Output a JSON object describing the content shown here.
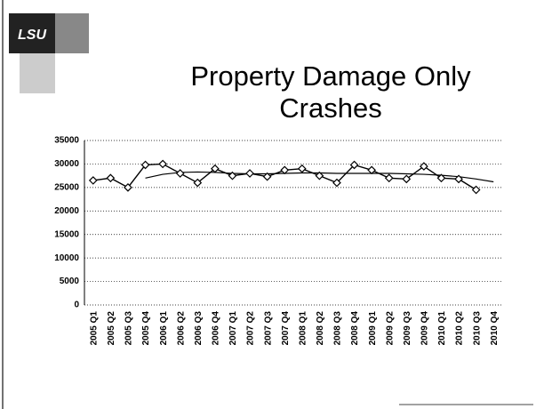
{
  "logo": "LSU",
  "chart_data": {
    "type": "line",
    "title_lines": [
      "Property Damage Only",
      "Crashes"
    ],
    "categories": [
      "2005 Q1",
      "2005 Q2",
      "2005 Q3",
      "2005 Q4",
      "2006 Q1",
      "2006 Q2",
      "2006 Q3",
      "2006 Q4",
      "2007 Q1",
      "2007 Q2",
      "2007 Q3",
      "2007 Q4",
      "2008 Q1",
      "2008 Q2",
      "2008 Q3",
      "2008 Q4",
      "2009 Q1",
      "2009 Q2",
      "2009 Q3",
      "2009 Q4",
      "2010 Q1",
      "2010 Q2",
      "2010 Q3",
      "2010 Q4"
    ],
    "values": [
      26500,
      27000,
      25000,
      29800,
      30000,
      28000,
      26000,
      29000,
      27500,
      28000,
      27300,
      28700,
      29000,
      27500,
      26000,
      29800,
      28700,
      27000,
      26800,
      29500,
      27000,
      26800,
      24500,
      null
    ],
    "trend_values": [
      null,
      null,
      null,
      27000,
      27800,
      28200,
      28300,
      28200,
      28000,
      27900,
      27900,
      28000,
      28100,
      28100,
      28000,
      28000,
      28000,
      28000,
      27900,
      27800,
      27600,
      27300,
      26800,
      26200
    ],
    "color": "#000000",
    "ylim": [
      0,
      35000
    ],
    "yticks": [
      0,
      5000,
      10000,
      15000,
      20000,
      25000,
      30000,
      35000
    ],
    "grid": true
  }
}
